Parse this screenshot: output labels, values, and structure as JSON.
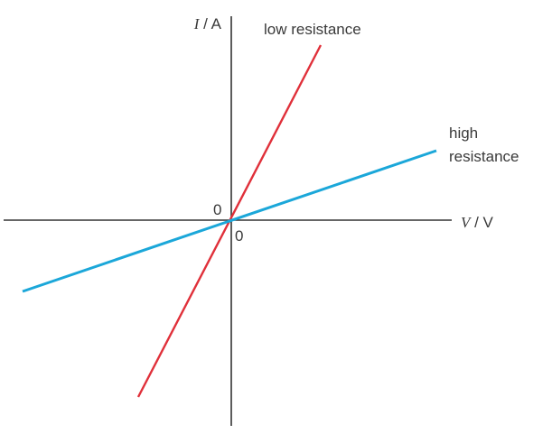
{
  "y_axis_label": {
    "symbol": "I",
    "unit": " / A"
  },
  "x_axis_label": {
    "symbol": "V",
    "unit": " / V"
  },
  "origin_labels": [
    "0",
    "0"
  ],
  "lines": [
    {
      "label_lines": [
        "low resistance"
      ]
    },
    {
      "label_lines": [
        "high",
        "resistance"
      ]
    }
  ]
}
